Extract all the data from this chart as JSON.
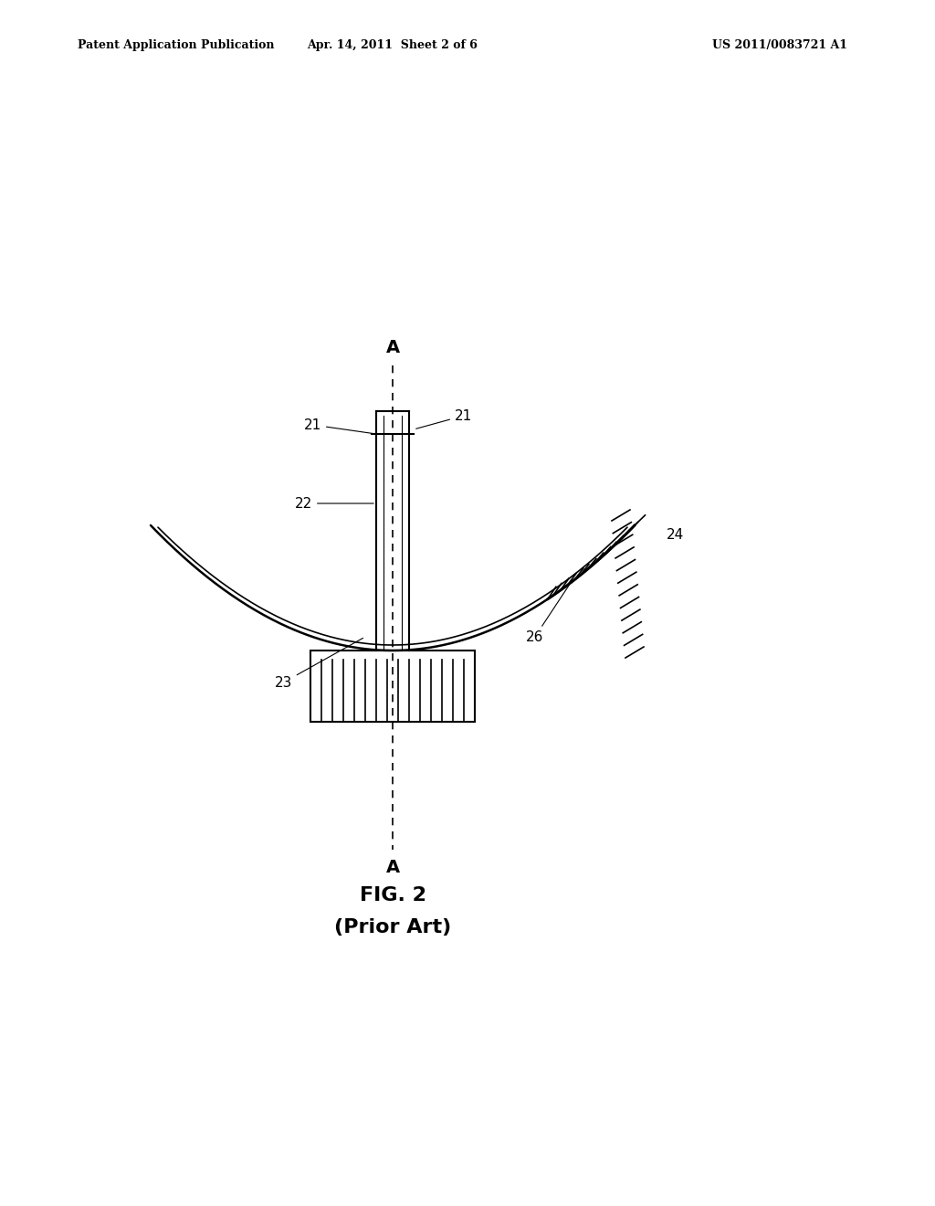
{
  "bg_color": "#ffffff",
  "line_color": "#000000",
  "header_left": "Patent Application Publication",
  "header_mid": "Apr. 14, 2011  Sheet 2 of 6",
  "header_right": "US 2011/0083721 A1",
  "fig_label": "FIG. 2",
  "fig_sublabel": "(Prior Art)",
  "axis_label_A": "A",
  "label_21_left": "21",
  "label_21_right": "21",
  "label_22": "22",
  "label_23": "23",
  "label_24": "24",
  "label_26": "26"
}
